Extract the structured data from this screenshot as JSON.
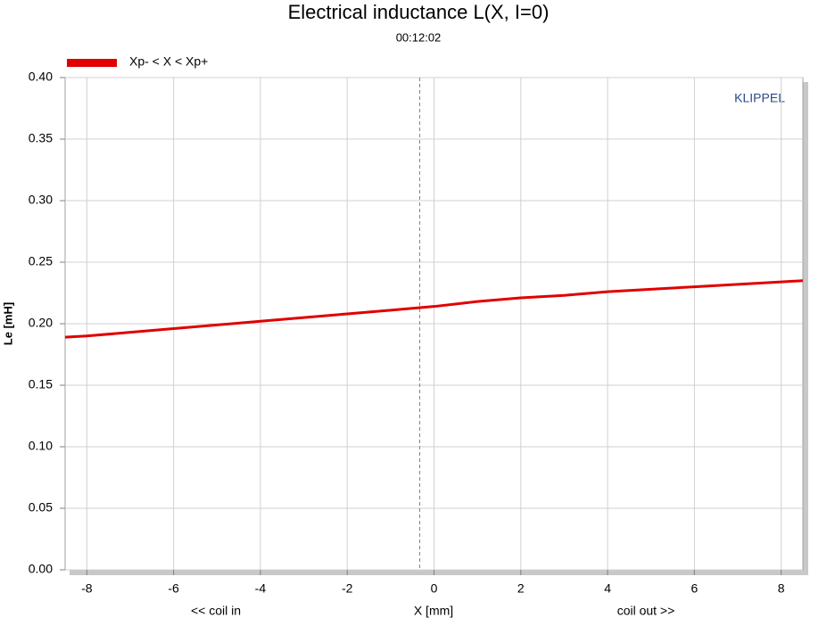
{
  "chart_data": {
    "type": "line",
    "title": "Electrical inductance L(X, I=0)",
    "subtitle": "00:12:02",
    "xlabel": "X [mm]",
    "ylabel": "Le [mH]",
    "x_note_left": "<< coil in",
    "x_note_right": "coil out >>",
    "brand": "KLIPPEL",
    "x": [
      -8.5,
      -8,
      -7,
      -6,
      -5,
      -4,
      -3,
      -2,
      -1,
      0,
      1,
      2,
      3,
      4,
      5,
      6,
      7,
      8,
      8.5
    ],
    "series": [
      {
        "name": "Xp- < X < Xp+",
        "color": "#e00000",
        "values": [
          0.189,
          0.19,
          0.193,
          0.196,
          0.199,
          0.202,
          0.205,
          0.208,
          0.211,
          0.214,
          0.218,
          0.221,
          0.223,
          0.226,
          0.228,
          0.23,
          0.232,
          0.234,
          0.235
        ]
      }
    ],
    "x_marker": -0.33,
    "xlim": [
      -8.5,
      8.5
    ],
    "xticks": [
      -8,
      -6,
      -4,
      -2,
      0,
      2,
      4,
      6,
      8
    ],
    "ylim": [
      0,
      0.4
    ],
    "yticks": [
      {
        "value": 0,
        "label": "0.00"
      },
      0.05,
      {
        "value": 0.1,
        "label": "0.10"
      },
      0.15,
      {
        "value": 0.2,
        "label": "0.20"
      },
      0.25,
      {
        "value": 0.3,
        "label": "0.30"
      },
      0.35,
      {
        "value": 0.4,
        "label": "0.40"
      }
    ],
    "grid": true
  }
}
